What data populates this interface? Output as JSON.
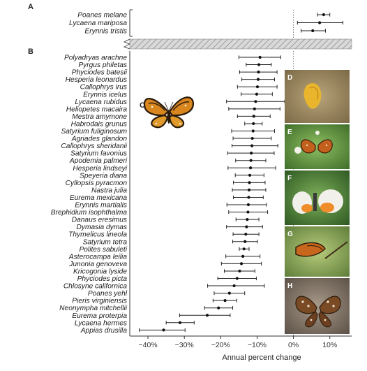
{
  "panels": {
    "A": "A",
    "B": "B",
    "C": "C",
    "D": "D",
    "E": "E",
    "F": "F",
    "G": "G",
    "H": "H"
  },
  "chart_data": [
    {
      "panel": "A",
      "type": "scatter",
      "error_bars": true,
      "categories": [
        "Poanes melane",
        "Lycaena mariposa",
        "Erynnis tristis"
      ],
      "values": [
        8.3,
        7.2,
        5.3
      ],
      "lower": [
        6.6,
        1.1,
        2.1
      ],
      "upper": [
        10.0,
        13.6,
        8.8
      ],
      "xlim": [
        -45,
        16
      ],
      "reference_line": 0
    },
    {
      "panel": "B",
      "type": "scatter",
      "error_bars": true,
      "categories": [
        "Polyadryas arachne",
        "Pyrgus philetas",
        "Phyciodes batesii",
        "Hesperia leonardus",
        "Callophrys irus",
        "Erynnis icelus",
        "Lycaena rubidus",
        "Heliopetes macaira",
        "Mestra amymone",
        "Habrodais grunus",
        "Satyrium fuliginosum",
        "Agriades glandon",
        "Callophrys sheridanii",
        "Satyrium favonius",
        "Apodemia palmeri",
        "Hesperia lindseyi",
        "Speyeria diana",
        "Cyllopsis pyracmon",
        "Nastra julia",
        "Eurema mexicana",
        "Erynnis martialis",
        "Brephidium isophthalma",
        "Danaus eresimus",
        "Dymasia dymas",
        "Thymelicus lineola",
        "Satyrium tetra",
        "Polites sabuleti",
        "Asterocampa leilia",
        "Junonia genoveva",
        "Kricogonia lyside",
        "Phyciodes picta",
        "Chlosyne californica",
        "Poanes yehl",
        "Pieris virginiensis",
        "Neonympha mitchellii",
        "Eurema proterpia",
        "Lycaena hermes",
        "Appias drusilla"
      ],
      "values": [
        -9.2,
        -9.5,
        -9.6,
        -9.7,
        -9.9,
        -10.1,
        -10.4,
        -10.7,
        -10.9,
        -11.0,
        -11.1,
        -11.3,
        -11.4,
        -11.6,
        -11.7,
        -11.8,
        -12.0,
        -12.1,
        -12.2,
        -12.3,
        -12.4,
        -12.5,
        -12.7,
        -12.9,
        -13.1,
        -13.3,
        -13.6,
        -13.9,
        -14.3,
        -14.8,
        -15.5,
        -16.3,
        -17.6,
        -18.8,
        -20.6,
        -23.7,
        -31.2,
        -35.7
      ],
      "lower": [
        -15.0,
        -13.0,
        -14.8,
        -14.2,
        -15.4,
        -14.4,
        -18.4,
        -17.8,
        -15.4,
        -13.4,
        -17.0,
        -16.6,
        -16.9,
        -18.1,
        -15.9,
        -18.0,
        -16.0,
        -16.5,
        -16.8,
        -16.5,
        -18.3,
        -17.8,
        -15.8,
        -18.4,
        -16.6,
        -16.7,
        -14.9,
        -18.6,
        -19.8,
        -19.0,
        -20.8,
        -23.6,
        -21.8,
        -22.1,
        -24.4,
        -31.3,
        -35.0,
        -42.4
      ],
      "upper": [
        -3.5,
        -6.1,
        -4.5,
        -5.2,
        -4.5,
        -5.8,
        -2.4,
        -3.7,
        -6.4,
        -8.6,
        -5.2,
        -6.1,
        -4.3,
        -5.3,
        -7.6,
        -4.9,
        -8.1,
        -7.8,
        -7.6,
        -8.3,
        -7.4,
        -7.1,
        -9.5,
        -8.5,
        -9.5,
        -9.9,
        -12.2,
        -9.2,
        -8.8,
        -10.6,
        -10.2,
        -8.0,
        -13.4,
        -15.6,
        -16.7,
        -17.4,
        -27.3,
        -29.8
      ],
      "xlim": [
        -45,
        16
      ],
      "xticks": [
        "−40%",
        "−30%",
        "−20%",
        "−10%",
        "0%",
        "10%"
      ],
      "xtick_values": [
        -40,
        -30,
        -20,
        -10,
        0,
        10
      ],
      "xlabel": "Annual percent change",
      "reference_line": 0
    }
  ]
}
